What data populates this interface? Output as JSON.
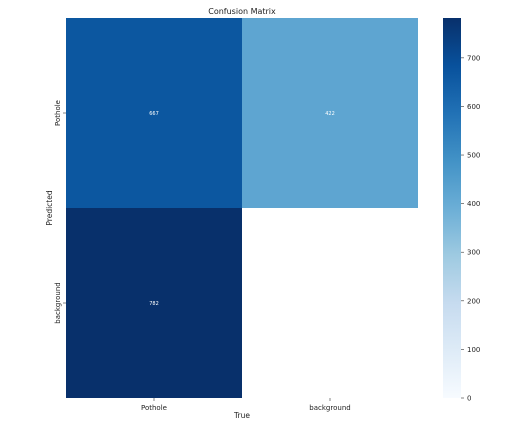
{
  "chart_data": {
    "type": "heatmap",
    "title": "Confusion Matrix",
    "xlabel": "True",
    "ylabel": "Predicted",
    "x_categories": [
      "Pothole",
      "background"
    ],
    "y_categories": [
      "Pothole",
      "background"
    ],
    "values": [
      [
        667,
        422
      ],
      [
        782,
        null
      ]
    ],
    "colorbar": {
      "min": 0,
      "max": 782,
      "ticks": [
        0,
        100,
        200,
        300,
        400,
        500,
        600,
        700
      ],
      "colormap": "Blues"
    }
  }
}
